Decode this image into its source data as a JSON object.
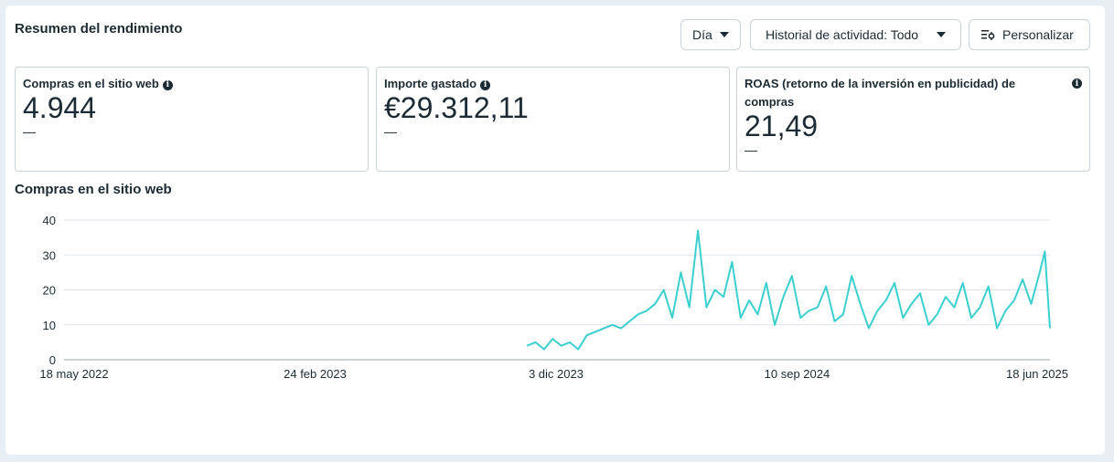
{
  "header": {
    "title": "Resumen del rendimiento",
    "day_label": "Día",
    "history_label": "Historial de actividad: Todo",
    "customize_label": "Personalizar"
  },
  "metrics": [
    {
      "label": "Compras en el sitio web",
      "value": "4.944",
      "delta": "—"
    },
    {
      "label": "Importe gastado",
      "value": "€29.312,11",
      "delta": "—"
    },
    {
      "label": "ROAS (retorno de la inversión en publicidad) de compras",
      "value": "21,49",
      "delta": "—"
    }
  ],
  "chart_title": "Compras en el sitio web",
  "colors": {
    "line": "#3ccfcf",
    "grid": "#dfe3e8"
  },
  "chart_data": {
    "type": "line",
    "title": "Compras en el sitio web",
    "ylim": [
      0,
      40
    ],
    "y_ticks": [
      0,
      10,
      20,
      30,
      40
    ],
    "xlim": [
      "2022-05-18",
      "2025-06-18"
    ],
    "x_tick_labels": [
      "18 may 2022",
      "24 feb 2023",
      "3 dic 2023",
      "10 sep 2024",
      "18 jun 2025"
    ],
    "x_tick_dates": [
      "2022-05-18",
      "2023-02-24",
      "2023-12-03",
      "2024-09-10",
      "2025-06-18"
    ],
    "grid": true,
    "series": [
      {
        "x": [
          "2023-10-15",
          "2023-10-25",
          "2023-11-04",
          "2023-11-14",
          "2023-11-24",
          "2023-12-04",
          "2023-12-14",
          "2023-12-24",
          "2024-01-03",
          "2024-01-13",
          "2024-01-23",
          "2024-02-02",
          "2024-02-12",
          "2024-02-22",
          "2024-03-03",
          "2024-03-13",
          "2024-03-23",
          "2024-04-02",
          "2024-04-12",
          "2024-04-22",
          "2024-05-02",
          "2024-05-12",
          "2024-05-22",
          "2024-06-01",
          "2024-06-11",
          "2024-06-21",
          "2024-07-01",
          "2024-07-11",
          "2024-07-21",
          "2024-07-31",
          "2024-08-10",
          "2024-08-20",
          "2024-08-30",
          "2024-09-09",
          "2024-09-19",
          "2024-09-29",
          "2024-10-09",
          "2024-10-19",
          "2024-10-29",
          "2024-11-08",
          "2024-11-18",
          "2024-11-28",
          "2024-12-08",
          "2024-12-18",
          "2024-12-28",
          "2025-01-07",
          "2025-01-17",
          "2025-01-27",
          "2025-02-06",
          "2025-02-16",
          "2025-02-26",
          "2025-03-08",
          "2025-03-18",
          "2025-03-28",
          "2025-04-07",
          "2025-04-17",
          "2025-04-27",
          "2025-05-07",
          "2025-05-17",
          "2025-05-27",
          "2025-06-06",
          "2025-06-12",
          "2025-06-18"
        ],
        "values": [
          4,
          5,
          3,
          6,
          4,
          5,
          3,
          7,
          8,
          9,
          10,
          9,
          11,
          13,
          14,
          16,
          20,
          12,
          25,
          15,
          37,
          15,
          20,
          18,
          28,
          12,
          17,
          13,
          22,
          10,
          18,
          24,
          12,
          14,
          15,
          21,
          11,
          13,
          24,
          16,
          9,
          14,
          17,
          22,
          12,
          16,
          19,
          10,
          13,
          18,
          15,
          22,
          12,
          15,
          21,
          9,
          14,
          17,
          23,
          16,
          25,
          31,
          9
        ]
      }
    ]
  }
}
